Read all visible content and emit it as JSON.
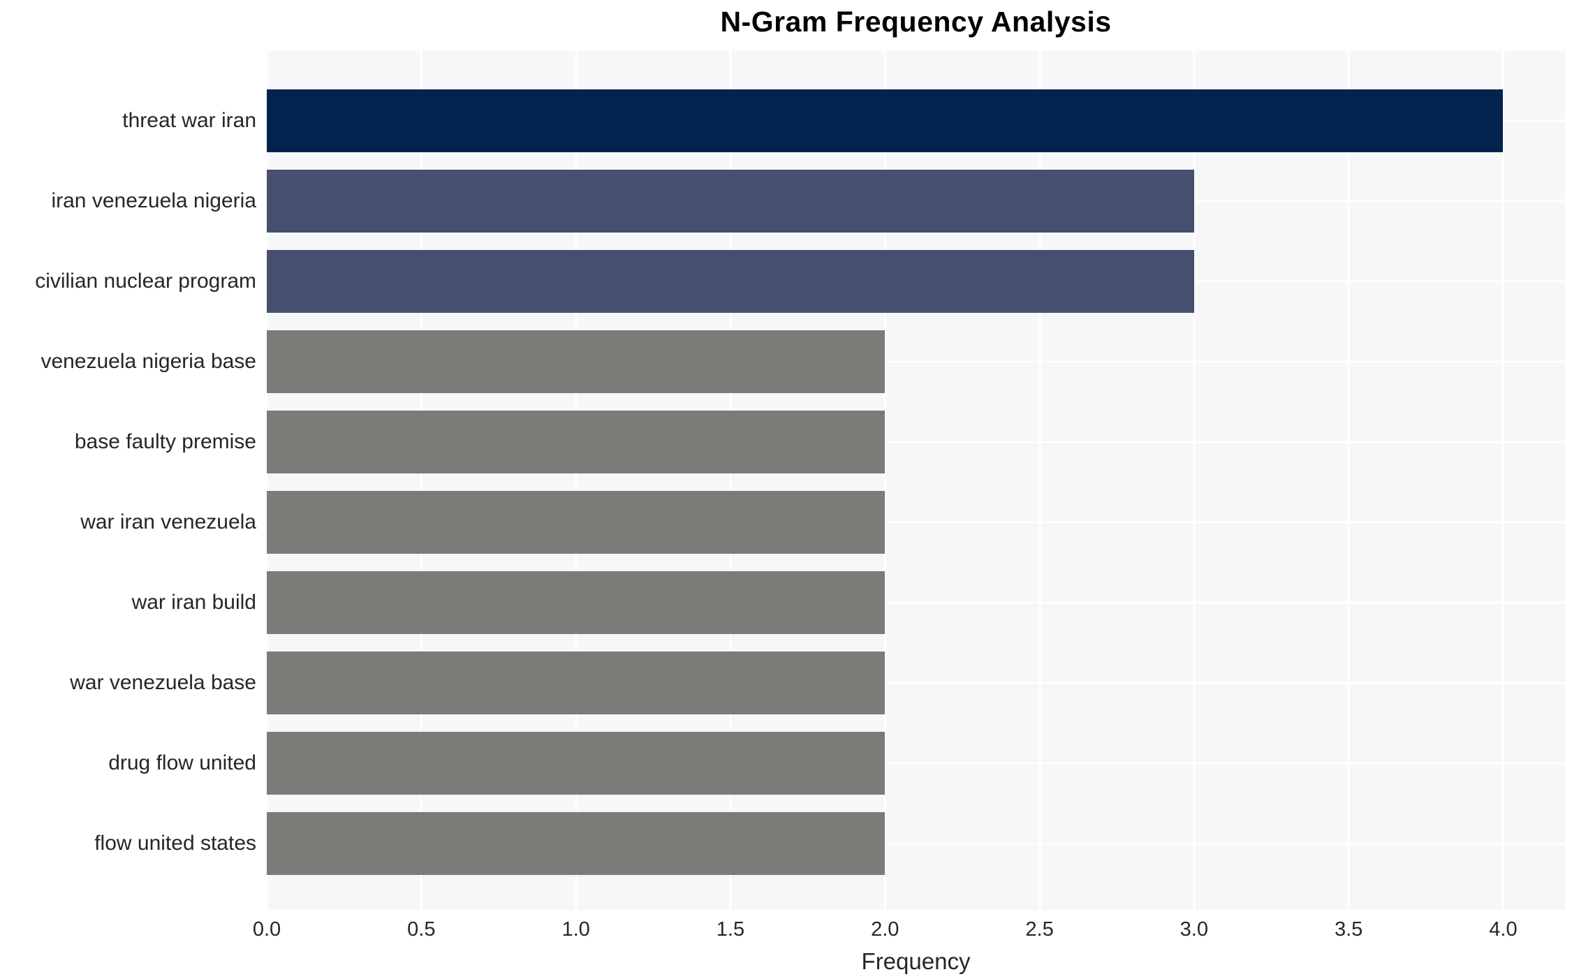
{
  "chart_data": {
    "type": "bar",
    "orientation": "horizontal",
    "title": "N-Gram Frequency Analysis",
    "xlabel": "Frequency",
    "ylabel": "",
    "categories": [
      "threat war iran",
      "iran venezuela nigeria",
      "civilian nuclear program",
      "venezuela nigeria base",
      "base faulty premise",
      "war iran venezuela",
      "war iran build",
      "war venezuela base",
      "drug flow united",
      "flow united states"
    ],
    "values": [
      4,
      3,
      3,
      2,
      2,
      2,
      2,
      2,
      2,
      2
    ],
    "bar_colors": [
      "#02234d",
      "#464f6e",
      "#464f6e",
      "#7b7b78",
      "#7b7b78",
      "#7b7b78",
      "#7b7b78",
      "#7b7b78",
      "#7b7b78",
      "#7b7b78"
    ],
    "xticks": [
      0.0,
      0.5,
      1.0,
      1.5,
      2.0,
      2.5,
      3.0,
      3.5,
      4.0
    ],
    "xtick_labels": [
      "0.0",
      "0.5",
      "1.0",
      "1.5",
      "2.0",
      "2.5",
      "3.0",
      "3.5",
      "4.0"
    ],
    "xlim": [
      0,
      4.2
    ],
    "grid": "on",
    "legend": "none",
    "colors": {
      "plot_background": "#f7f7f9",
      "figure_background": "#ffffff",
      "gridline": "#ffffff",
      "text": "#262626",
      "title_text": "#000000"
    }
  }
}
